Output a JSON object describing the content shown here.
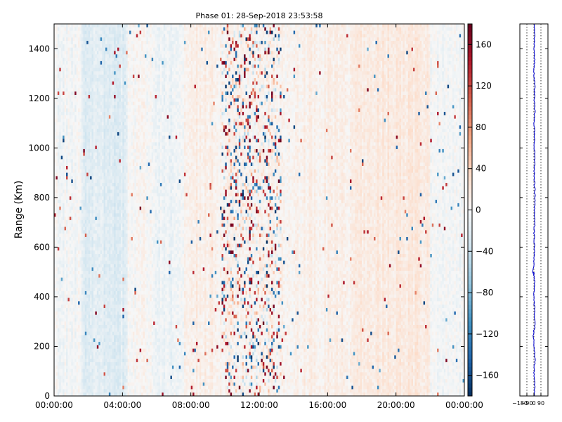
{
  "chart_data": {
    "type": "heatmap",
    "title": "Phase 01: 28-Sep-2018 23:53:58",
    "ylabel": "Range (Km)",
    "xlabel": "",
    "ylim": [
      0,
      1500
    ],
    "xlim": [
      "00:00:00",
      "24:00:00"
    ],
    "x_tick_labels": [
      "00:00:00",
      "04:00:00",
      "08:00:00",
      "12:00:00",
      "16:00:00",
      "20:00:00",
      "00:00:00"
    ],
    "y_ticks": [
      0,
      200,
      400,
      600,
      800,
      1000,
      1200,
      1400
    ],
    "colorbar": {
      "colormap": "RdBu_r",
      "range": [
        -180,
        180
      ],
      "ticks": [
        -160,
        -120,
        -80,
        -40,
        0,
        40,
        80,
        120,
        160
      ],
      "colors": [
        "#053061",
        "#2166ac",
        "#4393c3",
        "#92c5de",
        "#d1e5f0",
        "#f7f7f7",
        "#fddbc7",
        "#f4a582",
        "#d6604d",
        "#b2182b",
        "#67001f"
      ]
    },
    "time_bands_hours": [
      {
        "start": 0.0,
        "end": 1.6,
        "mean": -4
      },
      {
        "start": 1.6,
        "end": 4.3,
        "mean": -22
      },
      {
        "start": 4.3,
        "end": 5.8,
        "mean": 2
      },
      {
        "start": 5.8,
        "end": 7.6,
        "mean": -10
      },
      {
        "start": 7.6,
        "end": 9.6,
        "mean": 12
      },
      {
        "start": 9.6,
        "end": 14.0,
        "mean": 5
      },
      {
        "start": 14.0,
        "end": 17.5,
        "mean": 10
      },
      {
        "start": 17.5,
        "end": 22.0,
        "mean": 18
      },
      {
        "start": 22.0,
        "end": 24.0,
        "mean": -3
      }
    ],
    "noisy_band_hours": [
      9.8,
      13.3
    ],
    "side_profile": {
      "xlim": [
        -180,
        180
      ],
      "x_tick_labels": [
        "−180",
        "−90",
        "0",
        "90"
      ],
      "x_ticks": [
        -180,
        -90,
        0,
        90
      ],
      "gridlines_x": [
        -90,
        0,
        90
      ],
      "color": "#0000cc",
      "profile": [
        [
          0,
          5
        ],
        [
          50,
          10
        ],
        [
          100,
          0
        ],
        [
          150,
          15
        ],
        [
          200,
          5
        ],
        [
          250,
          -8
        ],
        [
          280,
          12
        ],
        [
          350,
          8
        ],
        [
          400,
          0
        ],
        [
          460,
          10
        ],
        [
          490,
          2
        ],
        [
          500,
          -12
        ],
        [
          550,
          5
        ],
        [
          600,
          8
        ],
        [
          650,
          2
        ],
        [
          700,
          10
        ],
        [
          750,
          5
        ],
        [
          800,
          15
        ],
        [
          850,
          8
        ],
        [
          900,
          4
        ],
        [
          950,
          12
        ],
        [
          1000,
          6
        ],
        [
          1050,
          10
        ],
        [
          1100,
          3
        ],
        [
          1150,
          12
        ],
        [
          1200,
          5
        ],
        [
          1250,
          10
        ],
        [
          1300,
          2
        ],
        [
          1350,
          8
        ],
        [
          1400,
          4
        ],
        [
          1450,
          10
        ],
        [
          1500,
          6
        ]
      ]
    }
  }
}
